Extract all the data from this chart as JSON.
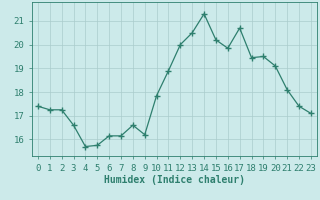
{
  "x": [
    0,
    1,
    2,
    3,
    4,
    5,
    6,
    7,
    8,
    9,
    10,
    11,
    12,
    13,
    14,
    15,
    16,
    17,
    18,
    19,
    20,
    21,
    22,
    23
  ],
  "y": [
    17.4,
    17.25,
    17.25,
    16.6,
    15.7,
    15.75,
    16.15,
    16.15,
    16.6,
    16.2,
    17.85,
    18.9,
    20.0,
    20.5,
    21.3,
    20.2,
    19.85,
    20.7,
    19.45,
    19.5,
    19.1,
    18.1,
    17.4,
    17.1
  ],
  "line_color": "#2e7f6e",
  "marker": "+",
  "marker_size": 4,
  "marker_lw": 1.0,
  "line_width": 0.9,
  "bg_color": "#cceaea",
  "grid_color": "#aacccc",
  "xlabel": "Humidex (Indice chaleur)",
  "ylabel_ticks": [
    16,
    17,
    18,
    19,
    20,
    21
  ],
  "xlim": [
    -0.5,
    23.5
  ],
  "ylim": [
    15.3,
    21.8
  ],
  "xtick_labels": [
    "0",
    "1",
    "2",
    "3",
    "4",
    "5",
    "6",
    "7",
    "8",
    "9",
    "10",
    "11",
    "12",
    "13",
    "14",
    "15",
    "16",
    "17",
    "18",
    "19",
    "20",
    "21",
    "22",
    "23"
  ],
  "font_size_xlabel": 7,
  "font_size_ticks": 6.5
}
